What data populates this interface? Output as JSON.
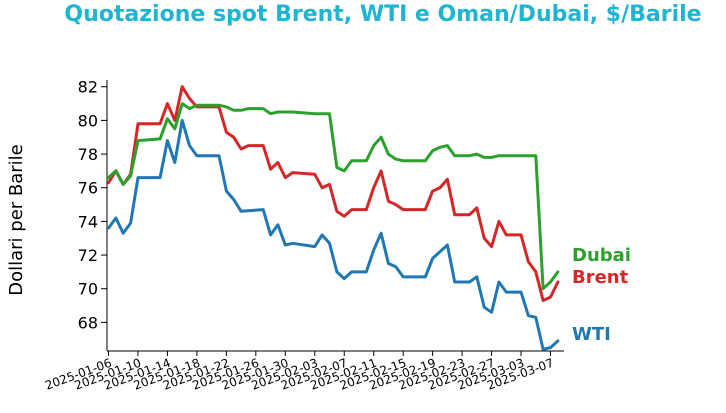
{
  "colors": {
    "title": "#1fb4d2",
    "wti": "#1f77b4",
    "brent": "#d62728",
    "dubai": "#2ca02c"
  },
  "chart_data": {
    "type": "line",
    "title": "Quotazione spot Brent, WTI e Oman/Dubai, $/Barile",
    "xlabel": "",
    "ylabel": "Dollari per Barile",
    "ylim": [
      66.3,
      82.4
    ],
    "yticks": [
      68,
      70,
      72,
      74,
      76,
      78,
      80,
      82
    ],
    "xlim": [
      "2025-01-06",
      "2025-03-07"
    ],
    "xticks": [
      "2025-01-06",
      "2025-01-10",
      "2025-01-14",
      "2025-01-18",
      "2025-01-22",
      "2025-01-26",
      "2025-01-30",
      "2025-02-03",
      "2025-02-07",
      "2025-02-11",
      "2025-02-15",
      "2025-02-19",
      "2025-02-23",
      "2025-02-27",
      "2025-03-03",
      "2025-03-07"
    ],
    "grid": false,
    "legend": "inline labels at line ends",
    "series": [
      {
        "name": "WTI",
        "color_key": "wti",
        "points": [
          [
            "2025-01-06",
            73.6
          ],
          [
            "2025-01-07",
            74.2
          ],
          [
            "2025-01-08",
            73.3
          ],
          [
            "2025-01-09",
            73.9
          ],
          [
            "2025-01-10",
            76.6
          ],
          [
            "2025-01-13",
            76.6
          ],
          [
            "2025-01-14",
            78.8
          ],
          [
            "2025-01-15",
            77.5
          ],
          [
            "2025-01-16",
            80.0
          ],
          [
            "2025-01-17",
            78.5
          ],
          [
            "2025-01-18",
            77.9
          ],
          [
            "2025-01-21",
            77.9
          ],
          [
            "2025-01-22",
            75.8
          ],
          [
            "2025-01-23",
            75.3
          ],
          [
            "2025-01-24",
            74.6
          ],
          [
            "2025-01-27",
            74.7
          ],
          [
            "2025-01-28",
            73.2
          ],
          [
            "2025-01-29",
            73.8
          ],
          [
            "2025-01-30",
            72.6
          ],
          [
            "2025-01-31",
            72.7
          ],
          [
            "2025-02-03",
            72.5
          ],
          [
            "2025-02-04",
            73.2
          ],
          [
            "2025-02-05",
            72.7
          ],
          [
            "2025-02-06",
            71.0
          ],
          [
            "2025-02-07",
            70.6
          ],
          [
            "2025-02-08",
            71.0
          ],
          [
            "2025-02-10",
            71.0
          ],
          [
            "2025-02-11",
            72.3
          ],
          [
            "2025-02-12",
            73.3
          ],
          [
            "2025-02-13",
            71.5
          ],
          [
            "2025-02-14",
            71.3
          ],
          [
            "2025-02-15",
            70.7
          ],
          [
            "2025-02-18",
            70.7
          ],
          [
            "2025-02-19",
            71.8
          ],
          [
            "2025-02-20",
            72.2
          ],
          [
            "2025-02-21",
            72.6
          ],
          [
            "2025-02-22",
            70.4
          ],
          [
            "2025-02-24",
            70.4
          ],
          [
            "2025-02-25",
            70.7
          ],
          [
            "2025-02-26",
            68.9
          ],
          [
            "2025-02-27",
            68.6
          ],
          [
            "2025-02-28",
            70.4
          ],
          [
            "2025-03-01",
            69.8
          ],
          [
            "2025-03-03",
            69.8
          ],
          [
            "2025-03-04",
            68.4
          ],
          [
            "2025-03-05",
            68.3
          ],
          [
            "2025-03-06",
            66.4
          ],
          [
            "2025-03-07",
            66.5
          ],
          [
            "2025-03-08",
            66.9
          ]
        ]
      },
      {
        "name": "Brent",
        "color_key": "brent",
        "points": [
          [
            "2025-01-06",
            76.3
          ],
          [
            "2025-01-07",
            77.0
          ],
          [
            "2025-01-08",
            76.2
          ],
          [
            "2025-01-09",
            76.8
          ],
          [
            "2025-01-10",
            79.8
          ],
          [
            "2025-01-13",
            79.8
          ],
          [
            "2025-01-14",
            81.0
          ],
          [
            "2025-01-15",
            80.0
          ],
          [
            "2025-01-16",
            82.0
          ],
          [
            "2025-01-17",
            81.3
          ],
          [
            "2025-01-18",
            80.8
          ],
          [
            "2025-01-21",
            80.8
          ],
          [
            "2025-01-22",
            79.3
          ],
          [
            "2025-01-23",
            79.0
          ],
          [
            "2025-01-24",
            78.3
          ],
          [
            "2025-01-25",
            78.5
          ],
          [
            "2025-01-27",
            78.5
          ],
          [
            "2025-01-28",
            77.1
          ],
          [
            "2025-01-29",
            77.5
          ],
          [
            "2025-01-30",
            76.6
          ],
          [
            "2025-01-31",
            76.9
          ],
          [
            "2025-02-03",
            76.8
          ],
          [
            "2025-02-04",
            76.0
          ],
          [
            "2025-02-05",
            76.2
          ],
          [
            "2025-02-06",
            74.6
          ],
          [
            "2025-02-07",
            74.3
          ],
          [
            "2025-02-08",
            74.7
          ],
          [
            "2025-02-10",
            74.7
          ],
          [
            "2025-02-11",
            76.0
          ],
          [
            "2025-02-12",
            77.0
          ],
          [
            "2025-02-13",
            75.2
          ],
          [
            "2025-02-14",
            75.0
          ],
          [
            "2025-02-15",
            74.7
          ],
          [
            "2025-02-18",
            74.7
          ],
          [
            "2025-02-19",
            75.8
          ],
          [
            "2025-02-20",
            76.0
          ],
          [
            "2025-02-21",
            76.5
          ],
          [
            "2025-02-22",
            74.4
          ],
          [
            "2025-02-24",
            74.4
          ],
          [
            "2025-02-25",
            74.8
          ],
          [
            "2025-02-26",
            73.0
          ],
          [
            "2025-02-27",
            72.5
          ],
          [
            "2025-02-28",
            74.0
          ],
          [
            "2025-03-01",
            73.2
          ],
          [
            "2025-03-03",
            73.2
          ],
          [
            "2025-03-04",
            71.6
          ],
          [
            "2025-03-05",
            71.0
          ],
          [
            "2025-03-06",
            69.3
          ],
          [
            "2025-03-07",
            69.5
          ],
          [
            "2025-03-08",
            70.4
          ]
        ]
      },
      {
        "name": "Dubai",
        "color_key": "dubai",
        "points": [
          [
            "2025-01-06",
            76.6
          ],
          [
            "2025-01-07",
            77.0
          ],
          [
            "2025-01-08",
            76.2
          ],
          [
            "2025-01-09",
            76.7
          ],
          [
            "2025-01-10",
            78.8
          ],
          [
            "2025-01-13",
            78.9
          ],
          [
            "2025-01-14",
            80.1
          ],
          [
            "2025-01-15",
            79.5
          ],
          [
            "2025-01-16",
            81.0
          ],
          [
            "2025-01-17",
            80.7
          ],
          [
            "2025-01-18",
            80.9
          ],
          [
            "2025-01-21",
            80.9
          ],
          [
            "2025-01-22",
            80.8
          ],
          [
            "2025-01-23",
            80.6
          ],
          [
            "2025-01-24",
            80.6
          ],
          [
            "2025-01-25",
            80.7
          ],
          [
            "2025-01-27",
            80.7
          ],
          [
            "2025-01-28",
            80.4
          ],
          [
            "2025-01-29",
            80.5
          ],
          [
            "2025-01-31",
            80.5
          ],
          [
            "2025-02-03",
            80.4
          ],
          [
            "2025-02-04",
            80.4
          ],
          [
            "2025-02-05",
            80.4
          ],
          [
            "2025-02-06",
            77.2
          ],
          [
            "2025-02-07",
            77.0
          ],
          [
            "2025-02-08",
            77.6
          ],
          [
            "2025-02-10",
            77.6
          ],
          [
            "2025-02-11",
            78.5
          ],
          [
            "2025-02-12",
            79.0
          ],
          [
            "2025-02-13",
            78.0
          ],
          [
            "2025-02-14",
            77.7
          ],
          [
            "2025-02-15",
            77.6
          ],
          [
            "2025-02-18",
            77.6
          ],
          [
            "2025-02-19",
            78.2
          ],
          [
            "2025-02-20",
            78.4
          ],
          [
            "2025-02-21",
            78.5
          ],
          [
            "2025-02-22",
            77.9
          ],
          [
            "2025-02-24",
            77.9
          ],
          [
            "2025-02-25",
            78.0
          ],
          [
            "2025-02-26",
            77.8
          ],
          [
            "2025-02-27",
            77.8
          ],
          [
            "2025-02-28",
            77.9
          ],
          [
            "2025-03-04",
            77.9
          ],
          [
            "2025-03-05",
            77.9
          ],
          [
            "2025-03-06",
            70.0
          ],
          [
            "2025-03-07",
            70.4
          ],
          [
            "2025-03-08",
            71.0
          ]
        ]
      }
    ]
  }
}
